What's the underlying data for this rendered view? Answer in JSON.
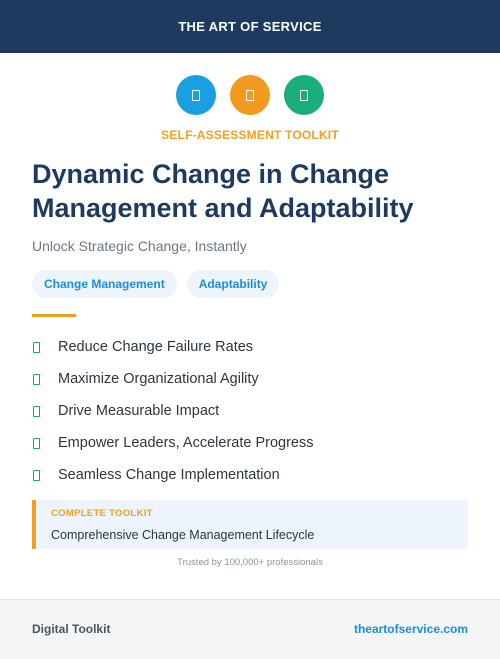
{
  "header": {
    "brand": "THE ART OF SERVICE"
  },
  "icons": [
    {
      "name": "icon-1",
      "color": "#1a9fe0"
    },
    {
      "name": "icon-2",
      "color": "#f29a1f"
    },
    {
      "name": "icon-3",
      "color": "#1aae7c"
    }
  ],
  "kicker": "SELF-ASSESSMENT TOOLKIT",
  "title": "Dynamic Change in Change Management and Adaptability",
  "subtitle": "Unlock Strategic Change, Instantly",
  "tags": [
    "Change Management",
    "Adaptability"
  ],
  "benefits": [
    "Reduce Change Failure Rates",
    "Maximize Organizational Agility",
    "Drive Measurable Impact",
    "Empower Leaders, Accelerate Progress",
    "Seamless Change Implementation"
  ],
  "callout": {
    "label": "COMPLETE TOOLKIT",
    "value": "Comprehensive Change Management Lifecycle"
  },
  "trusted": "Trusted by 100,000+ professionals",
  "footer": {
    "left": "Digital Toolkit",
    "right": "theartofservice.com"
  },
  "colors": {
    "navy": "#1e3a5f",
    "accent_orange": "#f0a020",
    "accent_blue": "#1a8fd6",
    "accent_green": "#1aa67a"
  }
}
